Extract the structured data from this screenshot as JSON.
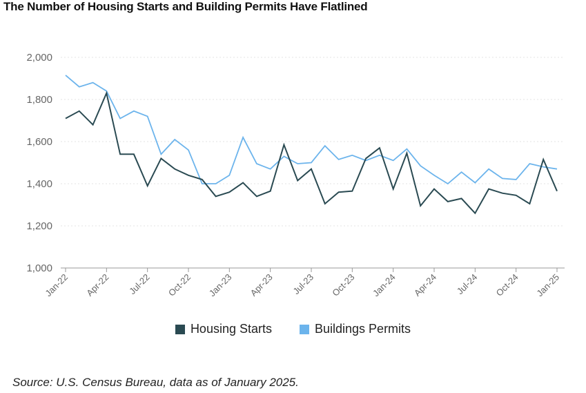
{
  "title": "The Number of Housing Starts and Building Permits Have Flatlined",
  "source": "Source: U.S. Census Bureau, data as of January 2025.",
  "colors": {
    "housing_starts": "#2a4a52",
    "building_permits": "#6cb4ec",
    "grid": "#e3e3e3",
    "axis": "#999999",
    "tick_text": "#666666"
  },
  "chart_data": {
    "type": "line",
    "title": "The Number of Housing Starts and Building Permits Have Flatlined",
    "xlabel": "",
    "ylabel": "",
    "ylim": [
      1000,
      2000
    ],
    "yticks": [
      "1,000",
      "1,200",
      "1,400",
      "1,600",
      "1,800",
      "2,000"
    ],
    "grid": true,
    "legend_position": "bottom-center",
    "x": [
      "Jan-22",
      "Feb-22",
      "Mar-22",
      "Apr-22",
      "May-22",
      "Jun-22",
      "Jul-22",
      "Aug-22",
      "Sep-22",
      "Oct-22",
      "Nov-22",
      "Dec-22",
      "Jan-23",
      "Feb-23",
      "Mar-23",
      "Apr-23",
      "May-23",
      "Jun-23",
      "Jul-23",
      "Aug-23",
      "Sep-23",
      "Oct-23",
      "Nov-23",
      "Dec-23",
      "Jan-24",
      "Feb-24",
      "Mar-24",
      "Apr-24",
      "May-24",
      "Jun-24",
      "Jul-24",
      "Aug-24",
      "Sep-24",
      "Oct-24",
      "Nov-24",
      "Dec-24",
      "Jan-25"
    ],
    "xtick_labels": [
      "Jan-22",
      "Apr-22",
      "Jul-22",
      "Oct-22",
      "Jan-23",
      "Apr-23",
      "Jul-23",
      "Oct-23",
      "Jan-24",
      "Apr-24",
      "Jul-24",
      "Oct-24",
      "Jan-25"
    ],
    "series": [
      {
        "name": "Housing Starts",
        "values": [
          1710,
          1745,
          1680,
          1830,
          1540,
          1540,
          1390,
          1520,
          1470,
          1440,
          1420,
          1340,
          1360,
          1405,
          1340,
          1365,
          1585,
          1415,
          1470,
          1305,
          1360,
          1365,
          1520,
          1570,
          1375,
          1545,
          1295,
          1375,
          1315,
          1330,
          1260,
          1375,
          1355,
          1345,
          1305,
          1515,
          1365
        ]
      },
      {
        "name": "Buildings Permits",
        "values": [
          1915,
          1860,
          1880,
          1840,
          1710,
          1745,
          1720,
          1540,
          1610,
          1560,
          1400,
          1400,
          1440,
          1620,
          1495,
          1470,
          1530,
          1495,
          1500,
          1580,
          1515,
          1535,
          1510,
          1535,
          1510,
          1565,
          1485,
          1440,
          1400,
          1455,
          1405,
          1470,
          1425,
          1420,
          1495,
          1480,
          1470
        ]
      }
    ]
  }
}
